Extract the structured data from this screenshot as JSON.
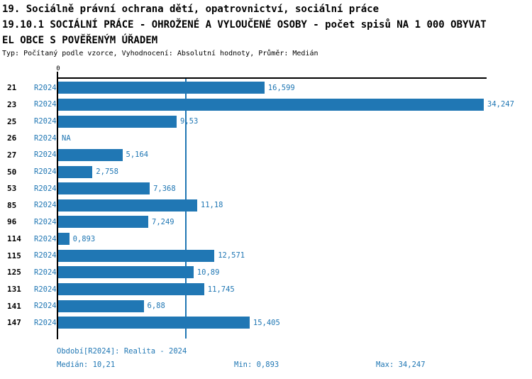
{
  "header": {
    "title": "19. Sociálně právní ochrana dětí, opatrovnictví, sociální práce",
    "subtitle_line1": "19.10.1 SOCIÁLNÍ PRÁCE - OHROŽENÉ A VYLOUČENÉ OSOBY - počet spisů NA 1 000 OBYVAT",
    "subtitle_line2": "EL OBCE S POVĚŘENÝM ÚŘADEM",
    "meta": "Typ: Počítaný podle vzorce, Vyhodnocení: Absolutní hodnoty, Průměr: Medián"
  },
  "chart_data": {
    "type": "bar",
    "orientation": "horizontal",
    "title": "19.10.1 SOCIÁLNÍ PRÁCE - OHROŽENÉ A VYLOUČENÉ OSOBY - počet spisů NA 1 000 OBYVATEL OBCE S POVĚŘENÝM ÚŘADEM",
    "axis_zero_label": "0",
    "xlim": [
      0,
      34.247
    ],
    "grid": false,
    "median_value": 10.21,
    "series_label": "R2024",
    "categories": [
      "21",
      "23",
      "25",
      "26",
      "27",
      "50",
      "53",
      "85",
      "96",
      "114",
      "115",
      "125",
      "131",
      "141",
      "147"
    ],
    "values": [
      16.599,
      34.247,
      9.53,
      null,
      5.164,
      2.758,
      7.368,
      11.18,
      7.249,
      0.893,
      12.571,
      10.89,
      11.745,
      6.88,
      15.405
    ],
    "rows": [
      {
        "id": "21",
        "series": "R2024",
        "value": 16.599,
        "label": "16,599"
      },
      {
        "id": "23",
        "series": "R2024",
        "value": 34.247,
        "label": "34,247"
      },
      {
        "id": "25",
        "series": "R2024",
        "value": 9.53,
        "label": "9,53"
      },
      {
        "id": "26",
        "series": "R2024",
        "value": null,
        "label": "NA"
      },
      {
        "id": "27",
        "series": "R2024",
        "value": 5.164,
        "label": "5,164"
      },
      {
        "id": "50",
        "series": "R2024",
        "value": 2.758,
        "label": "2,758"
      },
      {
        "id": "53",
        "series": "R2024",
        "value": 7.368,
        "label": "7,368"
      },
      {
        "id": "85",
        "series": "R2024",
        "value": 11.18,
        "label": "11,18"
      },
      {
        "id": "96",
        "series": "R2024",
        "value": 7.249,
        "label": "7,249"
      },
      {
        "id": "114",
        "series": "R2024",
        "value": 0.893,
        "label": "0,893"
      },
      {
        "id": "115",
        "series": "R2024",
        "value": 12.571,
        "label": "12,571"
      },
      {
        "id": "125",
        "series": "R2024",
        "value": 10.89,
        "label": "10,89"
      },
      {
        "id": "131",
        "series": "R2024",
        "value": 11.745,
        "label": "11,745"
      },
      {
        "id": "141",
        "series": "R2024",
        "value": 6.88,
        "label": "6,88"
      },
      {
        "id": "147",
        "series": "R2024",
        "value": 15.405,
        "label": "15,405"
      }
    ],
    "colors": {
      "bar": "#2077b4",
      "accent_text": "#2077b4",
      "axis": "#000000"
    }
  },
  "footer": {
    "period": "Období[R2024]: Realita - 2024",
    "median": "Medián: 10,21",
    "min": "Min: 0,893",
    "max": "Max: 34,247"
  }
}
